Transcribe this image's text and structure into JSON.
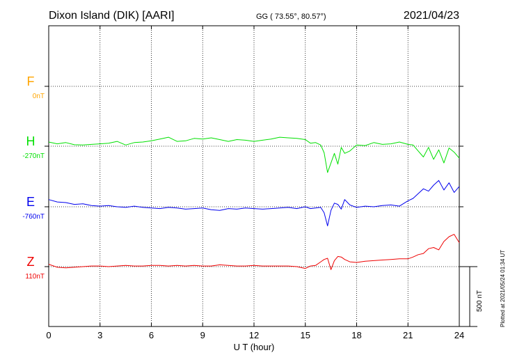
{
  "header": {
    "station": "Dixon Island (DIK)  [AARI]",
    "coords": "GG ( 73.55°,  80.57°)",
    "date": "2021/04/23"
  },
  "side_note": "Plotted at 2021/05/24 01:34 UT",
  "scale_label": "500 nT",
  "chart_data": {
    "type": "line",
    "xlabel": "U T (hour)",
    "xlim": [
      0,
      24
    ],
    "x_ticks": [
      "0",
      "3",
      "6",
      "9",
      "12",
      "15",
      "18",
      "21",
      "24"
    ],
    "grid": true,
    "scale_bar_nT": 500,
    "components": [
      {
        "name": "F",
        "baseline": "0nT",
        "color": "#ffa500"
      },
      {
        "name": "H",
        "baseline": "-270nT",
        "color": "#00e000"
      },
      {
        "name": "E",
        "baseline": "-760nT",
        "color": "#0000ee"
      },
      {
        "name": "Z",
        "baseline": "110nT",
        "color": "#ee0000"
      }
    ],
    "series": [
      {
        "name": "H",
        "color": "#00e000",
        "x": [
          0,
          0.5,
          1,
          1.5,
          2,
          2.5,
          3,
          3.5,
          4,
          4.5,
          5,
          5.5,
          6,
          6.5,
          7,
          7.5,
          8,
          8.5,
          9,
          9.5,
          10,
          10.5,
          11,
          11.5,
          12,
          12.5,
          13,
          13.5,
          14,
          14.5,
          15,
          15.3,
          15.6,
          15.9,
          16.1,
          16.3,
          16.5,
          16.7,
          16.9,
          17.1,
          17.3,
          17.6,
          18,
          18.5,
          19,
          19.5,
          20,
          20.5,
          21,
          21.3,
          21.6,
          21.9,
          22.2,
          22.5,
          22.8,
          23.1,
          23.4,
          23.7,
          24
        ],
        "y": [
          35,
          20,
          30,
          12,
          10,
          15,
          20,
          25,
          40,
          10,
          30,
          35,
          45,
          60,
          75,
          40,
          45,
          65,
          60,
          70,
          55,
          40,
          55,
          50,
          40,
          50,
          60,
          75,
          70,
          65,
          55,
          25,
          30,
          10,
          -55,
          -220,
          -140,
          -60,
          -150,
          -10,
          -60,
          -40,
          10,
          5,
          30,
          15,
          20,
          35,
          15,
          10,
          -40,
          -90,
          -10,
          -110,
          -30,
          -140,
          -15,
          -50,
          -100
        ]
      },
      {
        "name": "E",
        "color": "#0000ee",
        "x": [
          0,
          0.5,
          1,
          1.5,
          2,
          2.5,
          3,
          3.5,
          4,
          4.5,
          5,
          5.5,
          6,
          6.5,
          7,
          7.5,
          8,
          8.5,
          9,
          9.5,
          10,
          10.5,
          11,
          11.5,
          12,
          12.5,
          13,
          13.5,
          14,
          14.5,
          15,
          15.3,
          15.6,
          15.9,
          16.1,
          16.3,
          16.5,
          16.7,
          16.9,
          17.1,
          17.3,
          17.6,
          18,
          18.5,
          19,
          19.5,
          20,
          20.5,
          21,
          21.3,
          21.6,
          21.9,
          22.2,
          22.5,
          22.8,
          23.1,
          23.4,
          23.7,
          24
        ],
        "y": [
          60,
          40,
          35,
          20,
          25,
          10,
          5,
          10,
          0,
          -5,
          5,
          -5,
          -10,
          -15,
          -5,
          -10,
          -20,
          -15,
          -10,
          -25,
          -30,
          -15,
          -20,
          -10,
          -15,
          -20,
          -15,
          -10,
          -5,
          -15,
          0,
          -15,
          -10,
          -5,
          -50,
          -160,
          -30,
          30,
          20,
          -20,
          60,
          15,
          -5,
          5,
          0,
          10,
          15,
          5,
          50,
          70,
          110,
          150,
          130,
          180,
          220,
          140,
          200,
          120,
          170
        ]
      },
      {
        "name": "Z",
        "color": "#ee0000",
        "x": [
          0,
          0.5,
          1,
          1.5,
          2,
          2.5,
          3,
          3.5,
          4,
          4.5,
          5,
          5.5,
          6,
          6.5,
          7,
          7.5,
          8,
          8.5,
          9,
          9.5,
          10,
          10.5,
          11,
          11.5,
          12,
          12.5,
          13,
          13.5,
          14,
          14.5,
          15,
          15.3,
          15.6,
          15.9,
          16.1,
          16.3,
          16.5,
          16.7,
          16.9,
          17.1,
          17.3,
          17.6,
          18,
          18.5,
          19,
          19.5,
          20,
          20.5,
          21,
          21.3,
          21.6,
          21.9,
          22.2,
          22.5,
          22.8,
          23.1,
          23.4,
          23.7,
          24
        ],
        "y": [
          20,
          -5,
          -10,
          -5,
          0,
          5,
          5,
          0,
          5,
          10,
          5,
          5,
          10,
          10,
          5,
          10,
          5,
          10,
          5,
          5,
          15,
          10,
          5,
          5,
          10,
          5,
          5,
          5,
          5,
          0,
          -15,
          5,
          10,
          40,
          60,
          70,
          -25,
          50,
          85,
          80,
          60,
          40,
          35,
          45,
          50,
          55,
          60,
          65,
          65,
          80,
          100,
          110,
          150,
          160,
          140,
          210,
          250,
          270,
          200
        ]
      }
    ]
  }
}
